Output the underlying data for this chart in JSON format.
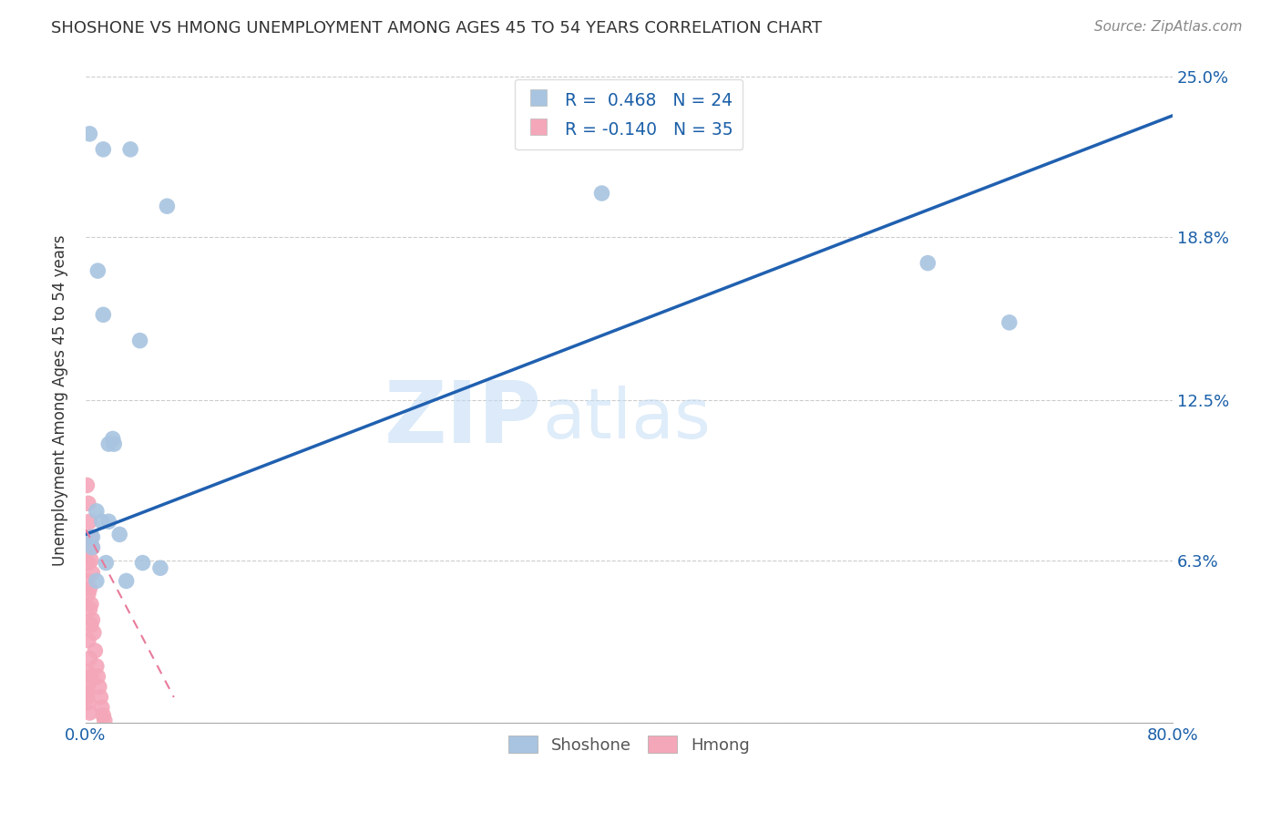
{
  "title": "SHOSHONE VS HMONG UNEMPLOYMENT AMONG AGES 45 TO 54 YEARS CORRELATION CHART",
  "source": "Source: ZipAtlas.com",
  "ylabel": "Unemployment Among Ages 45 to 54 years",
  "xlim": [
    0.0,
    0.8
  ],
  "ylim": [
    0.0,
    0.25
  ],
  "xticks": [
    0.0,
    0.1,
    0.2,
    0.3,
    0.4,
    0.5,
    0.6,
    0.7,
    0.8
  ],
  "xticklabels": [
    "0.0%",
    "",
    "",
    "",
    "",
    "",
    "",
    "",
    "80.0%"
  ],
  "ytick_positions": [
    0.0,
    0.063,
    0.125,
    0.188,
    0.25
  ],
  "ytick_labels": [
    "",
    "6.3%",
    "12.5%",
    "18.8%",
    "25.0%"
  ],
  "shoshone_color": "#a8c4e0",
  "hmong_color": "#f4a7b9",
  "shoshone_line_color": "#2060b0",
  "hmong_line_color": "#e87a9a",
  "watermark_zip": "ZIP",
  "watermark_atlas": "atlas",
  "legend_R_shoshone": "R =  0.468",
  "legend_N_shoshone": "N = 24",
  "legend_R_hmong": "R = -0.140",
  "legend_N_hmong": "N = 35",
  "shoshone_x": [
    0.003,
    0.013,
    0.033,
    0.009,
    0.013,
    0.017,
    0.021,
    0.017,
    0.005,
    0.008,
    0.012,
    0.025,
    0.04,
    0.06,
    0.38,
    0.62,
    0.68,
    0.005,
    0.008,
    0.015,
    0.03,
    0.042,
    0.055,
    0.02
  ],
  "shoshone_y": [
    0.228,
    0.222,
    0.222,
    0.175,
    0.158,
    0.108,
    0.108,
    0.078,
    0.072,
    0.082,
    0.078,
    0.073,
    0.148,
    0.2,
    0.205,
    0.178,
    0.155,
    0.068,
    0.055,
    0.062,
    0.055,
    0.062,
    0.06,
    0.11
  ],
  "hmong_x": [
    0.002,
    0.003,
    0.004,
    0.005,
    0.006,
    0.007,
    0.008,
    0.009,
    0.01,
    0.011,
    0.012,
    0.013,
    0.014,
    0.002,
    0.003,
    0.004,
    0.005,
    0.001,
    0.002,
    0.003,
    0.004,
    0.005,
    0.001,
    0.002,
    0.003,
    0.004,
    0.002,
    0.003,
    0.004,
    0.001,
    0.002,
    0.003,
    0.001,
    0.002,
    0.001
  ],
  "hmong_y": [
    0.062,
    0.052,
    0.046,
    0.04,
    0.035,
    0.028,
    0.022,
    0.018,
    0.014,
    0.01,
    0.006,
    0.003,
    0.001,
    0.072,
    0.068,
    0.063,
    0.058,
    0.092,
    0.085,
    0.078,
    0.072,
    0.068,
    0.055,
    0.05,
    0.044,
    0.038,
    0.032,
    0.025,
    0.018,
    0.012,
    0.008,
    0.004,
    0.02,
    0.015,
    0.01
  ],
  "shoshone_line_x": [
    0.0,
    0.8
  ],
  "shoshone_line_y": [
    0.073,
    0.235
  ],
  "hmong_line_x": [
    0.0,
    0.065
  ],
  "hmong_line_y": [
    0.075,
    0.01
  ]
}
